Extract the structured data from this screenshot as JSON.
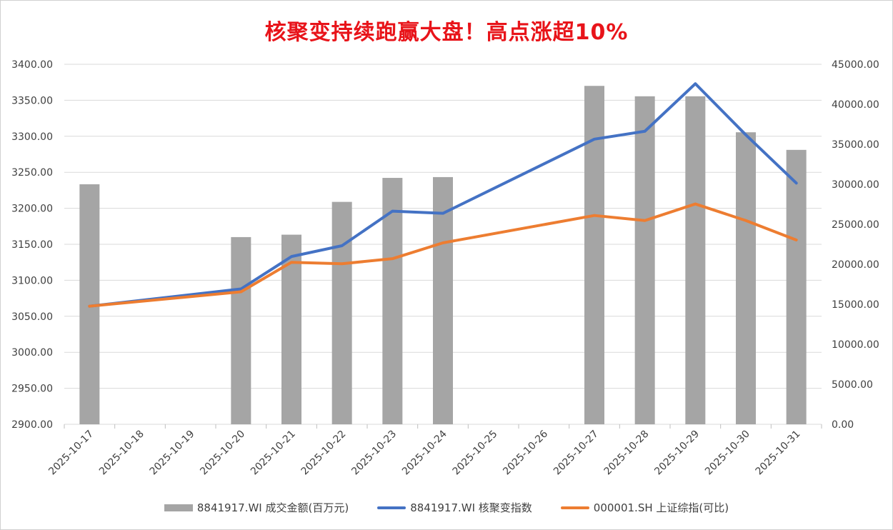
{
  "title": "核聚变持续跑赢大盘！高点涨超10%",
  "chart_data": {
    "type": "bar+line",
    "categories": [
      "2025-10-17",
      "2025-10-18",
      "2025-10-19",
      "2025-10-20",
      "2025-10-21",
      "2025-10-22",
      "2025-10-23",
      "2025-10-24",
      "2025-10-25",
      "2025-10-26",
      "2025-10-27",
      "2025-10-28",
      "2025-10-29",
      "2025-10-30",
      "2025-10-31"
    ],
    "left_axis": {
      "ylim": [
        2900,
        3400
      ],
      "ticks": [
        "2900.00",
        "2950.00",
        "3000.00",
        "3050.00",
        "3100.00",
        "3150.00",
        "3200.00",
        "3250.00",
        "3300.00",
        "3350.00",
        "3400.00"
      ]
    },
    "right_axis": {
      "ylim": [
        0,
        45000
      ],
      "ticks": [
        "0.00",
        "5000.00",
        "10000.00",
        "15000.00",
        "20000.00",
        "25000.00",
        "30000.00",
        "35000.00",
        "40000.00",
        "45000.00"
      ]
    },
    "series": [
      {
        "name": "8841917.WI 成交金额(百万元)",
        "type": "bar",
        "axis": "right",
        "color": "#a5a5a5",
        "values": [
          30000,
          null,
          null,
          23400,
          23700,
          27800,
          30800,
          30900,
          null,
          null,
          42300,
          41000,
          41000,
          36500,
          34300
        ]
      },
      {
        "name": "8841917.WI 核聚变指数",
        "type": "line",
        "axis": "left",
        "color": "#4472c4",
        "values": [
          3064,
          null,
          null,
          3088,
          3133,
          3148,
          3196,
          3193,
          null,
          null,
          3296,
          3307,
          3373,
          3302,
          3235
        ]
      },
      {
        "name": "000001.SH 上证综指(可比)",
        "type": "line",
        "axis": "left",
        "color": "#ed7d31",
        "values": [
          3064,
          null,
          null,
          3084,
          3125,
          3123,
          3130,
          3152,
          null,
          null,
          3190,
          3183,
          3206,
          3183,
          3156
        ]
      }
    ],
    "legend_position": "bottom",
    "grid": true
  }
}
